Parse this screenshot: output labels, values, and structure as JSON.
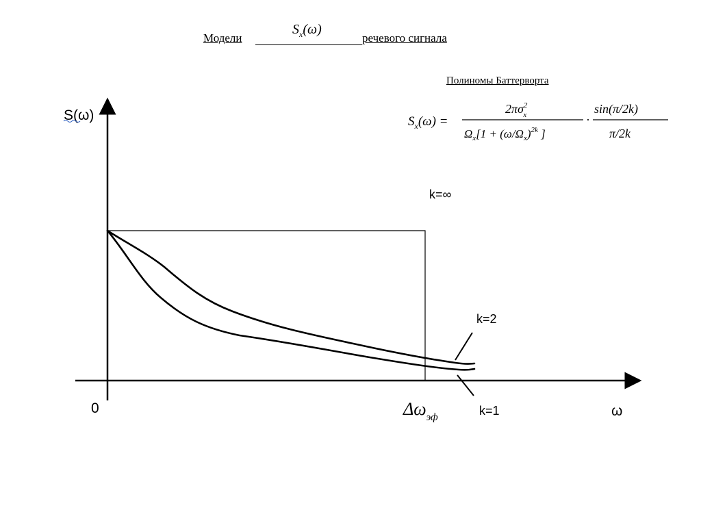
{
  "title": {
    "left": "Модели",
    "formula": "Sx(ω)",
    "right": "речевого сигнала"
  },
  "subtitle": "Полиномы Баттерворта",
  "formula": {
    "lhs": "Sx(ω) =",
    "numerator": "2πσx²",
    "denominator": "Ωx[1 + (ω/Ωx)²ᵏ]",
    "dot": "·",
    "sin_numerator": "sin(π/2k)",
    "sin_denominator": "π/2k"
  },
  "axes": {
    "y_label": "S(ω)",
    "x_label": "ω",
    "origin": "0",
    "cutoff_label": "Δω",
    "cutoff_subscript": "эф"
  },
  "curves": [
    {
      "name": "k=∞",
      "label": "k=∞"
    },
    {
      "name": "k=2",
      "label": "k=2"
    },
    {
      "name": "k=1",
      "label": "k=1"
    }
  ],
  "colors": {
    "line": "#000000",
    "spell_underline": "#3060c0"
  }
}
